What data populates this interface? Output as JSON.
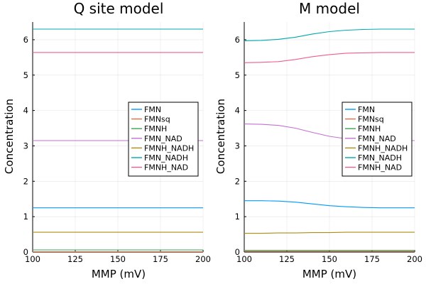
{
  "chart_data": [
    {
      "type": "line",
      "title": "Q site model",
      "xlabel": "MMP (mV)",
      "ylabel": "Concentration",
      "xlim": [
        100,
        200
      ],
      "ylim": [
        0,
        6.5
      ],
      "xticks": [
        100,
        125,
        150,
        175,
        200
      ],
      "yticks": [
        0,
        1,
        2,
        3,
        4,
        5,
        6
      ],
      "grid": true,
      "legend_position": "right",
      "x": [
        100,
        110,
        120,
        130,
        140,
        150,
        160,
        170,
        180,
        190,
        200
      ],
      "series": [
        {
          "name": "FMN",
          "color": "#009AFA",
          "values": [
            1.25,
            1.25,
            1.25,
            1.25,
            1.25,
            1.25,
            1.25,
            1.25,
            1.25,
            1.25,
            1.25
          ]
        },
        {
          "name": "FMNsq",
          "color": "#E36F47",
          "values": [
            0.01,
            0.01,
            0.01,
            0.01,
            0.01,
            0.01,
            0.01,
            0.01,
            0.01,
            0.01,
            0.01
          ]
        },
        {
          "name": "FMNH",
          "color": "#3EA44E",
          "values": [
            0.06,
            0.06,
            0.06,
            0.06,
            0.06,
            0.06,
            0.06,
            0.06,
            0.06,
            0.06,
            0.06
          ]
        },
        {
          "name": "FMN_NAD",
          "color": "#C371D2",
          "values": [
            3.15,
            3.15,
            3.15,
            3.15,
            3.15,
            3.15,
            3.15,
            3.15,
            3.15,
            3.15,
            3.15
          ]
        },
        {
          "name": "FMNH_NADH",
          "color": "#AC8D18",
          "values": [
            0.56,
            0.56,
            0.56,
            0.56,
            0.56,
            0.56,
            0.56,
            0.56,
            0.56,
            0.56,
            0.56
          ]
        },
        {
          "name": "FMN_NADH",
          "color": "#00A9AD",
          "values": [
            6.3,
            6.3,
            6.3,
            6.3,
            6.3,
            6.3,
            6.3,
            6.3,
            6.3,
            6.3,
            6.3
          ]
        },
        {
          "name": "FMNH_NAD",
          "color": "#ED5E93",
          "values": [
            5.64,
            5.64,
            5.64,
            5.64,
            5.64,
            5.64,
            5.64,
            5.64,
            5.64,
            5.64,
            5.64
          ]
        }
      ]
    },
    {
      "type": "line",
      "title": "M model",
      "xlabel": "MMP (mV)",
      "ylabel": "Concentration",
      "xlim": [
        100,
        200
      ],
      "ylim": [
        0,
        6.5
      ],
      "xticks": [
        100,
        125,
        150,
        175,
        200
      ],
      "yticks": [
        0,
        1,
        2,
        3,
        4,
        5,
        6
      ],
      "grid": true,
      "legend_position": "right",
      "x": [
        100,
        110,
        120,
        130,
        140,
        150,
        160,
        170,
        180,
        190,
        200
      ],
      "series": [
        {
          "name": "FMN",
          "color": "#009AFA",
          "values": [
            1.45,
            1.45,
            1.44,
            1.41,
            1.36,
            1.31,
            1.28,
            1.26,
            1.25,
            1.25,
            1.25
          ]
        },
        {
          "name": "FMNsq",
          "color": "#E36F47",
          "values": [
            0.02,
            0.02,
            0.02,
            0.02,
            0.02,
            0.02,
            0.02,
            0.02,
            0.02,
            0.02,
            0.02
          ]
        },
        {
          "name": "FMNH",
          "color": "#3EA44E",
          "values": [
            0.05,
            0.05,
            0.05,
            0.05,
            0.05,
            0.05,
            0.05,
            0.05,
            0.05,
            0.05,
            0.05
          ]
        },
        {
          "name": "FMN_NAD",
          "color": "#C371D2",
          "values": [
            3.62,
            3.61,
            3.58,
            3.5,
            3.38,
            3.27,
            3.2,
            3.17,
            3.16,
            3.15,
            3.15
          ]
        },
        {
          "name": "FMNH_NADH",
          "color": "#AC8D18",
          "values": [
            0.53,
            0.53,
            0.54,
            0.54,
            0.55,
            0.55,
            0.56,
            0.56,
            0.56,
            0.56,
            0.56
          ]
        },
        {
          "name": "FMN_NADH",
          "color": "#00A9AD",
          "values": [
            5.97,
            5.98,
            6.01,
            6.07,
            6.16,
            6.23,
            6.27,
            6.29,
            6.3,
            6.3,
            6.3
          ]
        },
        {
          "name": "FMNH_NAD",
          "color": "#ED5E93",
          "values": [
            5.35,
            5.36,
            5.38,
            5.44,
            5.52,
            5.58,
            5.62,
            5.63,
            5.64,
            5.64,
            5.64
          ]
        }
      ]
    }
  ]
}
